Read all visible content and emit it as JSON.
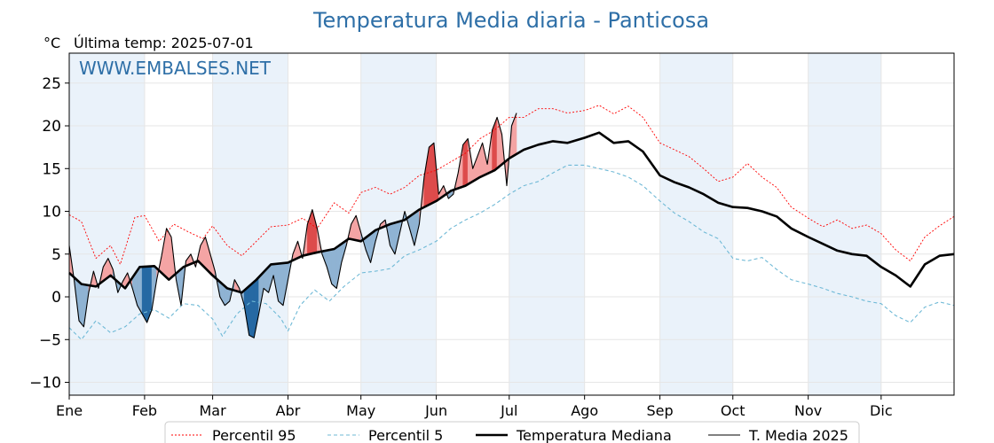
{
  "header": {
    "title": "Temperatura Media diaria - Panticosa",
    "unit": "°C",
    "last_temp": "Última temp: 2025-07-01",
    "watermark": "WWW.EMBALSES.NET"
  },
  "colors": {
    "p95": "#ff0000",
    "p5": "#6fb9d6",
    "median": "#000000",
    "current": "#000000",
    "above_light": "#f4a4a4",
    "above_dark": "#dd4b4b",
    "below_light": "#8fb3d3",
    "below_dark": "#2669a3",
    "band": "#eaf2fa"
  },
  "chart_data": {
    "type": "line",
    "title": "Temperatura Media diaria - Panticosa",
    "ylabel": "°C",
    "xlim": [
      1,
      365
    ],
    "ylim": [
      -11.5,
      28.5
    ],
    "yticks": [
      -10,
      -5,
      0,
      5,
      10,
      15,
      20,
      25
    ],
    "grid": true,
    "legend_position": "bottom",
    "months": [
      {
        "label": "Ene",
        "start": 1
      },
      {
        "label": "Feb",
        "start": 32
      },
      {
        "label": "Mar",
        "start": 60
      },
      {
        "label": "Abr",
        "start": 91
      },
      {
        "label": "May",
        "start": 121
      },
      {
        "label": "Jun",
        "start": 152
      },
      {
        "label": "Jul",
        "start": 182
      },
      {
        "label": "Ago",
        "start": 213
      },
      {
        "label": "Sep",
        "start": 244
      },
      {
        "label": "Oct",
        "start": 274
      },
      {
        "label": "Nov",
        "start": 305
      },
      {
        "label": "Dic",
        "start": 335
      }
    ],
    "series": [
      {
        "name": "Percentil 95",
        "key": "p95",
        "style": "dotted",
        "points": [
          [
            1,
            9.6
          ],
          [
            6,
            8.8
          ],
          [
            12,
            4.5
          ],
          [
            18,
            6.0
          ],
          [
            22,
            3.8
          ],
          [
            28,
            9.3
          ],
          [
            32,
            9.5
          ],
          [
            38,
            6.5
          ],
          [
            44,
            8.5
          ],
          [
            50,
            7.6
          ],
          [
            56,
            6.8
          ],
          [
            60,
            8.3
          ],
          [
            66,
            6.0
          ],
          [
            72,
            4.8
          ],
          [
            78,
            6.5
          ],
          [
            84,
            8.2
          ],
          [
            91,
            8.4
          ],
          [
            97,
            9.2
          ],
          [
            103,
            8.0
          ],
          [
            110,
            11.0
          ],
          [
            116,
            9.8
          ],
          [
            121,
            12.2
          ],
          [
            127,
            12.8
          ],
          [
            133,
            12.0
          ],
          [
            139,
            12.8
          ],
          [
            145,
            14.2
          ],
          [
            152,
            14.8
          ],
          [
            158,
            15.8
          ],
          [
            164,
            16.8
          ],
          [
            170,
            18.5
          ],
          [
            176,
            19.5
          ],
          [
            182,
            21.0
          ],
          [
            188,
            21.0
          ],
          [
            194,
            22.0
          ],
          [
            200,
            22.0
          ],
          [
            206,
            21.5
          ],
          [
            213,
            21.8
          ],
          [
            219,
            22.4
          ],
          [
            225,
            21.4
          ],
          [
            231,
            22.3
          ],
          [
            237,
            21.0
          ],
          [
            244,
            18.0
          ],
          [
            250,
            17.2
          ],
          [
            256,
            16.4
          ],
          [
            262,
            15.0
          ],
          [
            268,
            13.5
          ],
          [
            274,
            14.0
          ],
          [
            280,
            15.6
          ],
          [
            286,
            14.0
          ],
          [
            292,
            12.8
          ],
          [
            298,
            10.5
          ],
          [
            305,
            9.2
          ],
          [
            311,
            8.2
          ],
          [
            317,
            9.0
          ],
          [
            323,
            8.0
          ],
          [
            329,
            8.4
          ],
          [
            335,
            7.4
          ],
          [
            341,
            5.5
          ],
          [
            347,
            4.2
          ],
          [
            353,
            7.0
          ],
          [
            359,
            8.3
          ],
          [
            365,
            9.4
          ]
        ]
      },
      {
        "name": "Percentil 5",
        "key": "p5",
        "style": "dashed",
        "points": [
          [
            1,
            -3.6
          ],
          [
            6,
            -5.0
          ],
          [
            12,
            -2.8
          ],
          [
            18,
            -4.2
          ],
          [
            24,
            -3.5
          ],
          [
            30,
            -2.0
          ],
          [
            36,
            -1.5
          ],
          [
            42,
            -2.5
          ],
          [
            48,
            -0.8
          ],
          [
            54,
            -1.0
          ],
          [
            60,
            -2.6
          ],
          [
            64,
            -4.6
          ],
          [
            70,
            -2.0
          ],
          [
            76,
            -0.5
          ],
          [
            82,
            -0.8
          ],
          [
            88,
            -2.5
          ],
          [
            91,
            -4.0
          ],
          [
            96,
            -1.0
          ],
          [
            102,
            0.8
          ],
          [
            108,
            -0.5
          ],
          [
            114,
            1.2
          ],
          [
            121,
            2.8
          ],
          [
            127,
            3.0
          ],
          [
            133,
            3.3
          ],
          [
            139,
            4.8
          ],
          [
            145,
            5.5
          ],
          [
            152,
            6.5
          ],
          [
            158,
            8.0
          ],
          [
            164,
            9.0
          ],
          [
            170,
            9.8
          ],
          [
            176,
            10.8
          ],
          [
            182,
            12.0
          ],
          [
            188,
            13.0
          ],
          [
            194,
            13.5
          ],
          [
            200,
            14.5
          ],
          [
            206,
            15.4
          ],
          [
            213,
            15.4
          ],
          [
            219,
            15.0
          ],
          [
            225,
            14.6
          ],
          [
            231,
            14.0
          ],
          [
            237,
            13.0
          ],
          [
            244,
            11.2
          ],
          [
            250,
            9.8
          ],
          [
            256,
            8.8
          ],
          [
            262,
            7.6
          ],
          [
            268,
            6.8
          ],
          [
            274,
            4.5
          ],
          [
            280,
            4.2
          ],
          [
            286,
            4.6
          ],
          [
            292,
            3.2
          ],
          [
            298,
            2.0
          ],
          [
            305,
            1.5
          ],
          [
            311,
            1.0
          ],
          [
            317,
            0.4
          ],
          [
            323,
            0.0
          ],
          [
            329,
            -0.5
          ],
          [
            335,
            -0.8
          ],
          [
            341,
            -2.2
          ],
          [
            347,
            -3.0
          ],
          [
            353,
            -1.2
          ],
          [
            359,
            -0.6
          ],
          [
            365,
            -1.0
          ]
        ]
      },
      {
        "name": "Temperatura Mediana",
        "key": "median",
        "style": "solid-thick",
        "points": [
          [
            1,
            2.8
          ],
          [
            6,
            1.5
          ],
          [
            12,
            1.2
          ],
          [
            18,
            2.5
          ],
          [
            24,
            1.0
          ],
          [
            30,
            3.5
          ],
          [
            36,
            3.6
          ],
          [
            42,
            2.0
          ],
          [
            48,
            3.5
          ],
          [
            54,
            4.2
          ],
          [
            60,
            2.5
          ],
          [
            66,
            1.0
          ],
          [
            72,
            0.5
          ],
          [
            78,
            2.0
          ],
          [
            84,
            3.8
          ],
          [
            91,
            4.0
          ],
          [
            97,
            4.8
          ],
          [
            103,
            5.2
          ],
          [
            110,
            5.6
          ],
          [
            116,
            6.8
          ],
          [
            121,
            6.5
          ],
          [
            127,
            7.8
          ],
          [
            133,
            8.5
          ],
          [
            139,
            9.0
          ],
          [
            145,
            10.2
          ],
          [
            152,
            11.2
          ],
          [
            158,
            12.4
          ],
          [
            164,
            13.0
          ],
          [
            170,
            14.0
          ],
          [
            176,
            14.8
          ],
          [
            182,
            16.2
          ],
          [
            188,
            17.2
          ],
          [
            194,
            17.8
          ],
          [
            200,
            18.2
          ],
          [
            206,
            18.0
          ],
          [
            213,
            18.6
          ],
          [
            219,
            19.2
          ],
          [
            225,
            18.0
          ],
          [
            231,
            18.2
          ],
          [
            237,
            17.0
          ],
          [
            244,
            14.2
          ],
          [
            250,
            13.4
          ],
          [
            256,
            12.8
          ],
          [
            262,
            12.0
          ],
          [
            268,
            11.0
          ],
          [
            274,
            10.5
          ],
          [
            280,
            10.4
          ],
          [
            286,
            10.0
          ],
          [
            292,
            9.4
          ],
          [
            298,
            8.0
          ],
          [
            305,
            7.0
          ],
          [
            311,
            6.2
          ],
          [
            317,
            5.4
          ],
          [
            323,
            5.0
          ],
          [
            329,
            4.8
          ],
          [
            335,
            3.5
          ],
          [
            341,
            2.5
          ],
          [
            347,
            1.2
          ],
          [
            353,
            3.8
          ],
          [
            359,
            4.8
          ],
          [
            365,
            5.0
          ]
        ]
      },
      {
        "name": "T. Media 2025",
        "key": "current",
        "style": "solid-thin",
        "points": [
          [
            1,
            6.0
          ],
          [
            3,
            2.0
          ],
          [
            5,
            -2.8
          ],
          [
            7,
            -3.5
          ],
          [
            9,
            0.5
          ],
          [
            11,
            3.0
          ],
          [
            13,
            1.0
          ],
          [
            15,
            3.5
          ],
          [
            17,
            4.5
          ],
          [
            19,
            3.2
          ],
          [
            21,
            0.5
          ],
          [
            23,
            1.8
          ],
          [
            25,
            2.8
          ],
          [
            27,
            1.0
          ],
          [
            29,
            -1.0
          ],
          [
            31,
            -2.0
          ],
          [
            33,
            -3.0
          ],
          [
            35,
            -1.5
          ],
          [
            37,
            2.0
          ],
          [
            39,
            4.8
          ],
          [
            41,
            8.0
          ],
          [
            43,
            7.0
          ],
          [
            45,
            2.0
          ],
          [
            47,
            -1.0
          ],
          [
            49,
            4.2
          ],
          [
            51,
            5.0
          ],
          [
            53,
            3.5
          ],
          [
            55,
            6.0
          ],
          [
            57,
            7.0
          ],
          [
            59,
            5.0
          ],
          [
            61,
            3.0
          ],
          [
            63,
            0.0
          ],
          [
            65,
            -1.0
          ],
          [
            67,
            -0.5
          ],
          [
            69,
            2.0
          ],
          [
            71,
            1.0
          ],
          [
            73,
            -1.0
          ],
          [
            75,
            -4.5
          ],
          [
            77,
            -4.8
          ],
          [
            79,
            -2.0
          ],
          [
            81,
            1.0
          ],
          [
            83,
            0.5
          ],
          [
            85,
            2.5
          ],
          [
            87,
            -0.5
          ],
          [
            89,
            -1.0
          ],
          [
            91,
            2.0
          ],
          [
            93,
            5.0
          ],
          [
            95,
            6.5
          ],
          [
            97,
            4.5
          ],
          [
            99,
            8.5
          ],
          [
            101,
            10.2
          ],
          [
            103,
            8.0
          ],
          [
            105,
            5.0
          ],
          [
            107,
            3.5
          ],
          [
            109,
            1.5
          ],
          [
            111,
            1.0
          ],
          [
            113,
            4.0
          ],
          [
            115,
            6.0
          ],
          [
            117,
            8.5
          ],
          [
            119,
            9.5
          ],
          [
            121,
            7.5
          ],
          [
            123,
            5.5
          ],
          [
            125,
            4.0
          ],
          [
            127,
            6.5
          ],
          [
            129,
            8.5
          ],
          [
            131,
            9.0
          ],
          [
            133,
            6.0
          ],
          [
            135,
            5.0
          ],
          [
            137,
            7.5
          ],
          [
            139,
            10.0
          ],
          [
            141,
            8.0
          ],
          [
            143,
            6.0
          ],
          [
            145,
            8.5
          ],
          [
            147,
            14.0
          ],
          [
            149,
            17.5
          ],
          [
            151,
            18.0
          ],
          [
            153,
            12.0
          ],
          [
            155,
            13.0
          ],
          [
            157,
            11.5
          ],
          [
            159,
            12.0
          ],
          [
            161,
            14.5
          ],
          [
            163,
            17.8
          ],
          [
            165,
            18.5
          ],
          [
            167,
            15.0
          ],
          [
            169,
            16.5
          ],
          [
            171,
            18.0
          ],
          [
            173,
            15.5
          ],
          [
            175,
            19.5
          ],
          [
            177,
            21.0
          ],
          [
            179,
            19.0
          ],
          [
            181,
            13.0
          ],
          [
            183,
            20.0
          ],
          [
            185,
            21.5
          ]
        ]
      }
    ],
    "legend": [
      {
        "label": "Percentil 95",
        "key": "p95"
      },
      {
        "label": "Percentil 5",
        "key": "p5"
      },
      {
        "label": "Temperatura Mediana",
        "key": "median"
      },
      {
        "label": "T. Media 2025",
        "key": "current"
      }
    ]
  }
}
